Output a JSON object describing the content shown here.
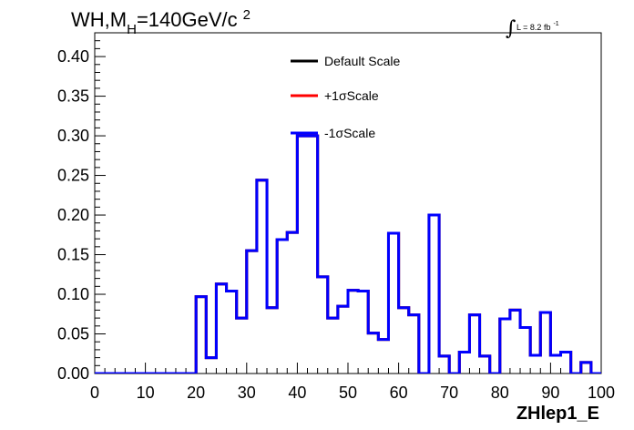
{
  "chart_data": {
    "type": "histogram",
    "title_main": "WH,M",
    "title_sub": "H",
    "title_rest": "=140GeV/c",
    "title_sup": "2",
    "lumi_integral": "∫",
    "lumi_text": "L = 8.2 fb",
    "lumi_sup": "-1",
    "xlabel": "ZHlep1_E",
    "xlim": [
      0,
      100
    ],
    "ylim": [
      0,
      0.43
    ],
    "x_ticks": [
      "0",
      "10",
      "20",
      "30",
      "40",
      "50",
      "60",
      "70",
      "80",
      "90",
      "100"
    ],
    "y_ticks": [
      "0.00",
      "0.05",
      "0.10",
      "0.15",
      "0.20",
      "0.25",
      "0.30",
      "0.35",
      "0.40"
    ],
    "legend_position": "top-center",
    "bin_width": 2,
    "series": [
      {
        "name": "Default Scale",
        "color": "#000000",
        "values": [
          0,
          0,
          0,
          0,
          0,
          0,
          0,
          0,
          0,
          0,
          0.097,
          0.02,
          0.113,
          0.104,
          0.07,
          0.155,
          0.244,
          0.083,
          0.169,
          0.178,
          0.3,
          0.3,
          0.122,
          0.07,
          0.085,
          0.105,
          0.104,
          0.051,
          0.043,
          0.177,
          0.083,
          0.074,
          0,
          0.2,
          0.022,
          0,
          0.027,
          0.074,
          0.022,
          0,
          0.069,
          0.08,
          0.058,
          0.023,
          0.077,
          0.023,
          0.027,
          0,
          0.014,
          0
        ]
      },
      {
        "name": "+1σScale",
        "color": "#ff0000",
        "values": [
          0,
          0,
          0,
          0,
          0,
          0,
          0,
          0,
          0,
          0,
          0.097,
          0.02,
          0.113,
          0.104,
          0.07,
          0.155,
          0.244,
          0.083,
          0.169,
          0.178,
          0.3,
          0.3,
          0.122,
          0.07,
          0.085,
          0.105,
          0.104,
          0.051,
          0.043,
          0.177,
          0.083,
          0.074,
          0,
          0.2,
          0.022,
          0,
          0.027,
          0.074,
          0.022,
          0,
          0.069,
          0.08,
          0.058,
          0.023,
          0.077,
          0.023,
          0.027,
          0,
          0.014,
          0
        ]
      },
      {
        "name": "-1σScale",
        "color": "#0000ff",
        "values": [
          0,
          0,
          0,
          0,
          0,
          0,
          0,
          0,
          0,
          0,
          0.097,
          0.02,
          0.113,
          0.104,
          0.07,
          0.155,
          0.244,
          0.083,
          0.169,
          0.178,
          0.3,
          0.3,
          0.122,
          0.07,
          0.085,
          0.105,
          0.104,
          0.051,
          0.043,
          0.177,
          0.083,
          0.074,
          0,
          0.2,
          0.022,
          0,
          0.027,
          0.074,
          0.022,
          0,
          0.069,
          0.08,
          0.058,
          0.023,
          0.077,
          0.023,
          0.027,
          0,
          0.014,
          0
        ]
      }
    ]
  }
}
